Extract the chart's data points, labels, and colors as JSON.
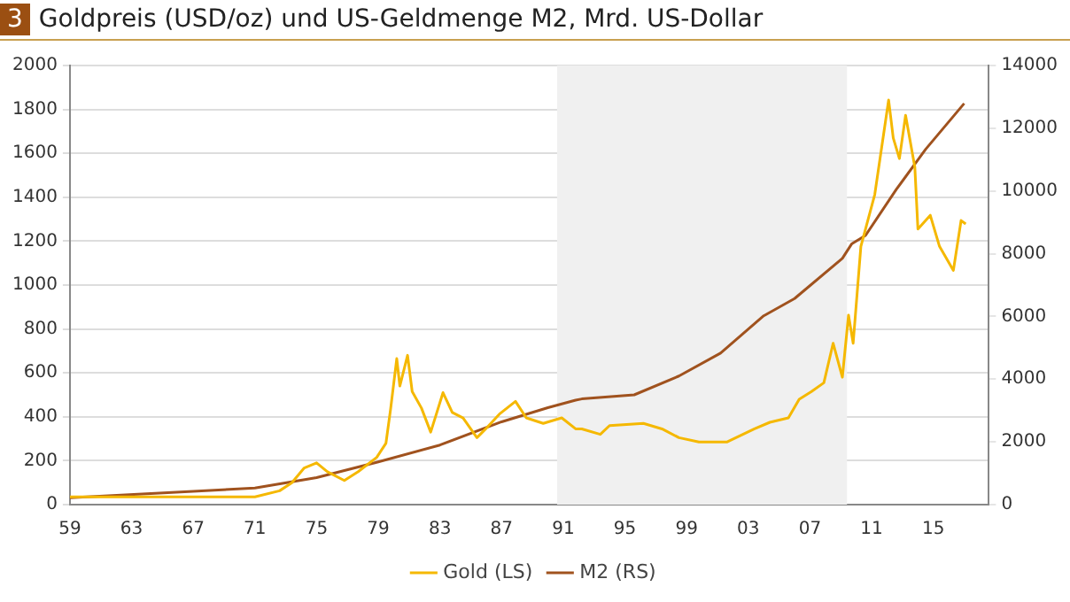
{
  "chart_data": {
    "type": "line",
    "title": "Goldpreis (USD/oz) und US-Geldmenge M2, Mrd. US-Dollar",
    "annotations": [
      "3"
    ],
    "xlim": [
      1959,
      2018.6
    ],
    "xticks": [
      {
        "value": 1959,
        "label": "59"
      },
      {
        "value": 1963,
        "label": "63"
      },
      {
        "value": 1967,
        "label": "67"
      },
      {
        "value": 1971,
        "label": "71"
      },
      {
        "value": 1975,
        "label": "75"
      },
      {
        "value": 1979,
        "label": "79"
      },
      {
        "value": 1983,
        "label": "83"
      },
      {
        "value": 1987,
        "label": "87"
      },
      {
        "value": 1991,
        "label": "91"
      },
      {
        "value": 1995,
        "label": "95"
      },
      {
        "value": 1999,
        "label": "99"
      },
      {
        "value": 2003,
        "label": "03"
      },
      {
        "value": 2007,
        "label": "07"
      },
      {
        "value": 2011,
        "label": "11"
      },
      {
        "value": 2015,
        "label": "15"
      }
    ],
    "ylim": [
      0,
      2000
    ],
    "yticks": [
      0,
      200,
      400,
      600,
      800,
      1000,
      1200,
      1400,
      1600,
      1800,
      2000
    ],
    "y2lim": [
      0,
      14000
    ],
    "y2ticks": [
      0,
      2000,
      4000,
      6000,
      8000,
      10000,
      12000,
      14000
    ],
    "series": [
      {
        "name": "Gold (LS)",
        "color": "#f5b800",
        "axis": "y",
        "x": [
          1959,
          1971,
          1972.6,
          1973.4,
          1974.2,
          1975,
          1975.7,
          1976.8,
          1977.7,
          1978.9,
          1979.5,
          1979.8,
          1980.2,
          1980.4,
          1980.9,
          1981.2,
          1981.8,
          1982.4,
          1982.8,
          1983.2,
          1983.8,
          1984.5,
          1985.4,
          1985.9,
          1986.9,
          1987.9,
          1988.6,
          1989.7,
          1990.9,
          1991.8,
          1992.2,
          1993.4,
          1994,
          1996.2,
          1997.4,
          1998.5,
          1999.8,
          2001.6,
          2003.4,
          2004.4,
          2005.6,
          2006.3,
          2007.1,
          2007.9,
          2008.5,
          2009.1,
          2009.5,
          2009.8,
          2010.3,
          2011.2,
          2012.1,
          2012.4,
          2012.8,
          2013.2,
          2013.8,
          2014,
          2014.8,
          2015.4,
          2016.3,
          2016.8,
          2017.1
        ],
        "values": [
          35,
          35,
          63,
          100,
          167,
          190,
          150,
          110,
          150,
          215,
          280,
          435,
          665,
          540,
          680,
          515,
          440,
          330,
          420,
          510,
          420,
          395,
          305,
          340,
          415,
          470,
          395,
          370,
          395,
          345,
          345,
          320,
          360,
          370,
          345,
          305,
          285,
          285,
          345,
          375,
          395,
          480,
          515,
          555,
          735,
          580,
          863,
          735,
          1176,
          1412,
          1843,
          1670,
          1576,
          1773,
          1537,
          1255,
          1318,
          1176,
          1067,
          1294,
          1278
        ]
      },
      {
        "name": "M2 (RS)",
        "color": "#a0521e",
        "axis": "y2",
        "x": [
          1959,
          1967,
          1971,
          1975,
          1979,
          1983,
          1987,
          1990,
          1991.8,
          1992.2,
          1995.6,
          1998.5,
          2001.2,
          2004,
          2006,
          2009.1,
          2009.7,
          2010.6,
          2012.6,
          2014.5,
          2017
        ],
        "values": [
          220,
          420,
          530,
          860,
          1360,
          1900,
          2640,
          3090,
          3330,
          3370,
          3500,
          4100,
          4830,
          6020,
          6570,
          7850,
          8310,
          8580,
          10050,
          11330,
          12790
        ]
      }
    ],
    "bands": [
      {
        "axis": "x",
        "from": 1990.6,
        "to": 2009.4,
        "color": "#f0f0f0"
      }
    ],
    "grid": "y",
    "legend": "bottom",
    "marker": "none",
    "line_style": "solid"
  }
}
